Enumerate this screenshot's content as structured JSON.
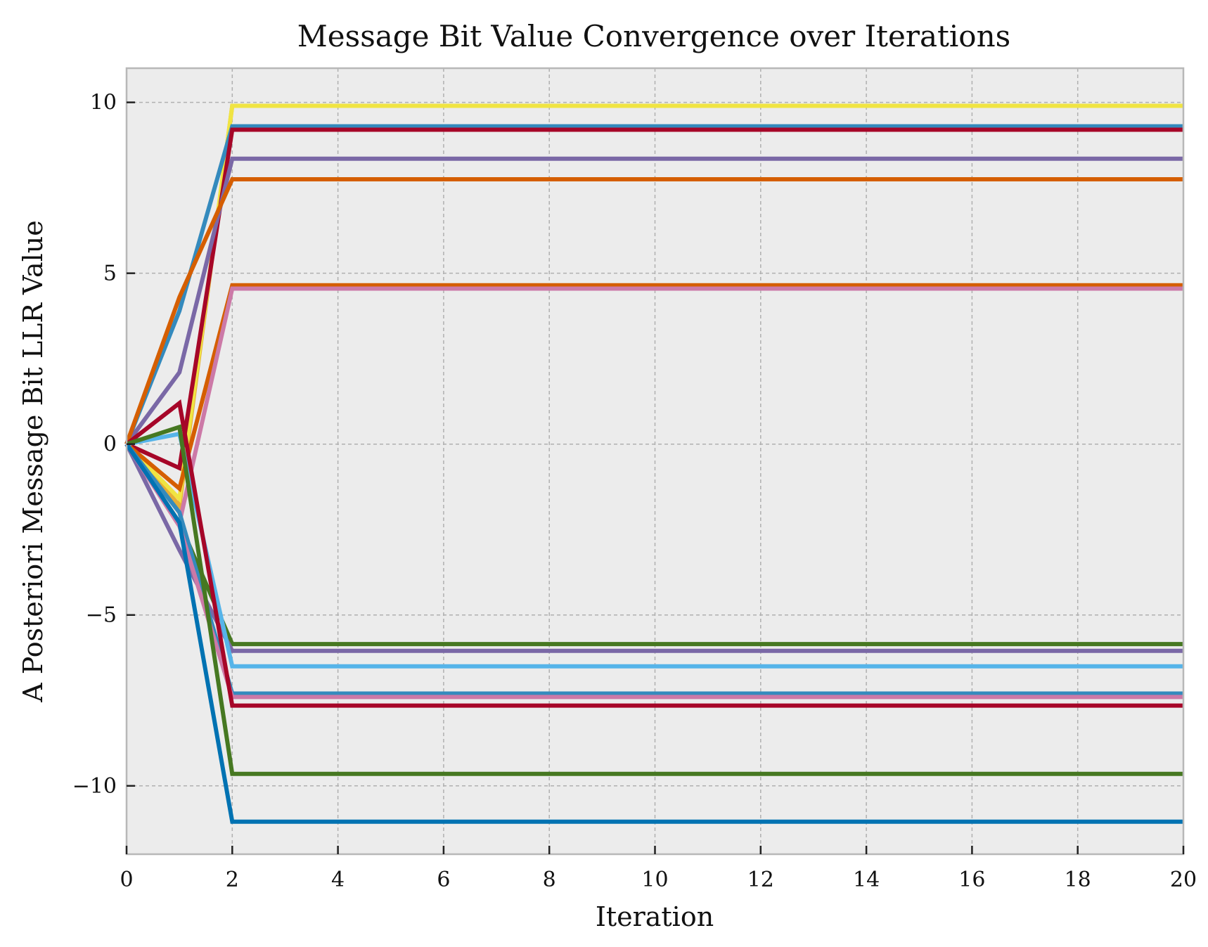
{
  "chart_data": {
    "type": "line",
    "title": "Message Bit Value Convergence over Iterations",
    "xlabel": "Iteration",
    "ylabel": "A Posteriori Message Bit LLR Value",
    "xlim": [
      0,
      20
    ],
    "ylim": [
      -12,
      11
    ],
    "x_ticks": [
      0,
      2,
      4,
      6,
      8,
      10,
      12,
      14,
      16,
      18,
      20
    ],
    "x_tick_labels": [
      "0",
      "2",
      "4",
      "6",
      "8",
      "10",
      "12",
      "14",
      "16",
      "18",
      "20"
    ],
    "y_ticks": [
      10,
      5,
      0,
      -5,
      -10
    ],
    "y_tick_labels": [
      "10",
      "5",
      "0",
      "−5",
      "−10"
    ],
    "grid": true,
    "background": "#ececec",
    "x": [
      0,
      1,
      2,
      3,
      4,
      5,
      6,
      7,
      8,
      9,
      10,
      11,
      12,
      13,
      14,
      15,
      16,
      17,
      18,
      19,
      20
    ],
    "series": [
      {
        "color": "#e5ae38",
        "start": [
          0,
          -1.8
        ],
        "final": 9.9
      },
      {
        "color": "#f0e442",
        "start": [
          0,
          -1.6
        ],
        "final": 9.9
      },
      {
        "color": "#348abd",
        "start": [
          0,
          3.9
        ],
        "final": 9.3
      },
      {
        "color": "#a60628",
        "start": [
          0,
          -0.7
        ],
        "final": 9.2
      },
      {
        "color": "#7a68a6",
        "start": [
          0,
          2.1
        ],
        "final": 8.35
      },
      {
        "color": "#d55e00",
        "start": [
          0,
          4.3
        ],
        "final": 7.75
      },
      {
        "color": "#d55e00",
        "start": [
          0,
          -1.3
        ],
        "final": 4.65
      },
      {
        "color": "#cc79a7",
        "start": [
          0,
          -2.3
        ],
        "final": 4.55
      },
      {
        "color": "#467821",
        "start": [
          0,
          -2.3
        ],
        "final": -5.85
      },
      {
        "color": "#7a68a6",
        "start": [
          0,
          -3.1
        ],
        "final": -6.05
      },
      {
        "color": "#56b4e9",
        "start": [
          0,
          0.3
        ],
        "final": -6.5
      },
      {
        "color": "#348abd",
        "start": [
          0,
          -2.0
        ],
        "final": -7.3
      },
      {
        "color": "#cc79a7",
        "start": [
          0,
          -2.4
        ],
        "final": -7.4
      },
      {
        "color": "#a60628",
        "start": [
          0,
          1.2
        ],
        "final": -7.65
      },
      {
        "color": "#467821",
        "start": [
          0,
          0.5
        ],
        "final": -9.65
      },
      {
        "color": "#0072b2",
        "start": [
          0,
          -2.3
        ],
        "final": -11.05
      }
    ]
  }
}
